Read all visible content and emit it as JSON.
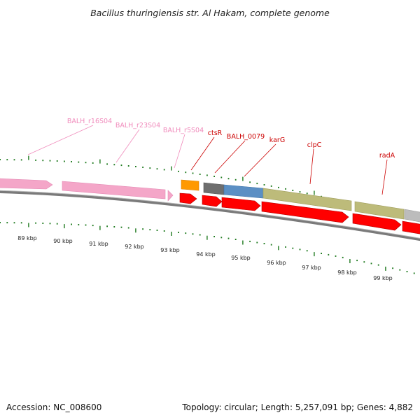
{
  "title": "Bacillus thuringiensis str. Al Hakam, complete genome",
  "footer": {
    "accession": "Accession: NC_008600",
    "summary": "Topology: circular; Length: 5,257,091 bp; Genes: 4,882"
  },
  "colors": {
    "rrna_pink": "#f4a6c8",
    "rrna_label": "#f08cbc",
    "cds_red": "#ff0000",
    "gene_label_red": "#cc0000",
    "tick_green": "#1f7a1f",
    "orange": "#ff9900",
    "dark_gray": "#6e6e6e",
    "steel_blue": "#5b8fc4",
    "olive": "#bdbb7a",
    "light_gray": "#bcbcbc",
    "backbone": "#888888"
  },
  "gene_labels": [
    {
      "id": "balh_r16s04",
      "text": "BALH_r16S04",
      "color": "pink"
    },
    {
      "id": "balh_r23s04",
      "text": "BALH_r23S04",
      "color": "pink"
    },
    {
      "id": "balh_r5s04",
      "text": "BALH_r5S04",
      "color": "pink"
    },
    {
      "id": "ctsr",
      "text": "ctsR",
      "color": "red"
    },
    {
      "id": "balh_0079",
      "text": "BALH_0079",
      "color": "red"
    },
    {
      "id": "karg",
      "text": "karG",
      "color": "red"
    },
    {
      "id": "clpc",
      "text": "clpC",
      "color": "red"
    },
    {
      "id": "rada",
      "text": "radA",
      "color": "red"
    }
  ],
  "kbp_labels": [
    "89 kbp",
    "90 kbp",
    "91 kbp",
    "92 kbp",
    "93 kbp",
    "94 kbp",
    "95 kbp",
    "96 kbp",
    "97 kbp",
    "98 kbp",
    "99 kbp"
  ]
}
